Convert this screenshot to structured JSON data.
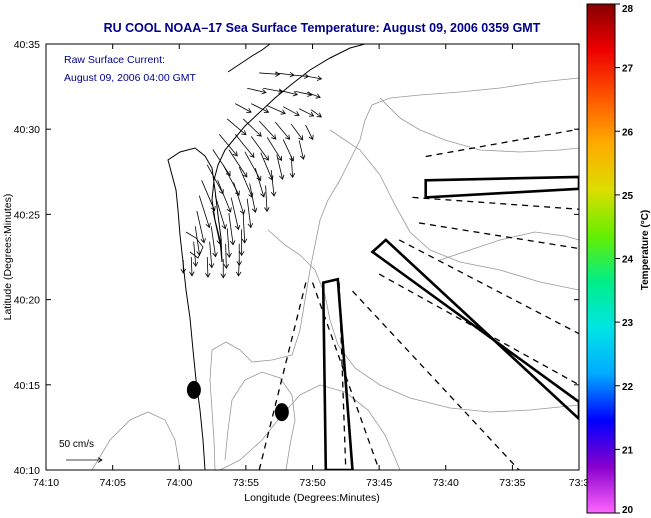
{
  "chart_data": {
    "type": "map",
    "title": "RU COOL  NOAA–17  Sea Surface Temperature:  August 09, 2006 0359 GMT",
    "annotation": [
      "Raw Surface Current:",
      "August 09, 2006 04:00 GMT"
    ],
    "xlabel": "Longitude (Degrees:Minutes)",
    "ylabel": "Latitude (Degrees:Minutes)",
    "xlim": [
      -74.1667,
      -73.5
    ],
    "ylim": [
      40.1667,
      40.5833
    ],
    "x_ticks": [
      {
        "v": -74.1667,
        "label": "74:10"
      },
      {
        "v": -74.0833,
        "label": "74:05"
      },
      {
        "v": -74.0,
        "label": "74:00"
      },
      {
        "v": -73.9167,
        "label": "73:55"
      },
      {
        "v": -73.8333,
        "label": "73:50"
      },
      {
        "v": -73.75,
        "label": "73:45"
      },
      {
        "v": -73.6667,
        "label": "73:40"
      },
      {
        "v": -73.5833,
        "label": "73:35"
      },
      {
        "v": -73.5,
        "label": "73:3"
      }
    ],
    "y_ticks": [
      {
        "v": 40.1667,
        "label": "40:10"
      },
      {
        "v": 40.25,
        "label": "40:15"
      },
      {
        "v": 40.3333,
        "label": "40:20"
      },
      {
        "v": 40.4167,
        "label": "40:25"
      },
      {
        "v": 40.5,
        "label": "40:30"
      },
      {
        "v": 40.5833,
        "label": "40:35"
      }
    ],
    "colorbar": {
      "label": "Temperature (°C)",
      "min": 20,
      "max": 28,
      "ticks": [
        20,
        21,
        22,
        23,
        24,
        25,
        26,
        27,
        28
      ],
      "stops": [
        "#ff66ff",
        "#8800cc",
        "#0000ff",
        "#00aaff",
        "#00e5e5",
        "#00ee88",
        "#66ee00",
        "#dddd00",
        "#ffaa00",
        "#ff5500",
        "#ee0000",
        "#880000"
      ]
    },
    "scale_label": "50 cm/s",
    "scale_speed": 50,
    "markers": [
      {
        "lon": -73.9817,
        "lat": 40.245
      },
      {
        "lon": -73.8717,
        "lat": 40.2233
      }
    ],
    "solid_polygons": [
      [
        [
          -73.6917,
          40.45
        ],
        [
          -73.5,
          40.4533
        ],
        [
          -73.5,
          40.4417
        ],
        [
          -73.6917,
          40.4333
        ]
      ],
      [
        [
          -73.8167,
          40.1667
        ],
        [
          -73.82,
          40.35
        ],
        [
          -73.8017,
          40.3533
        ],
        [
          -73.7833,
          40.1667
        ]
      ],
      [
        [
          -73.7583,
          40.38
        ],
        [
          -73.5,
          40.2333
        ],
        [
          -73.5,
          40.2167
        ],
        [
          -73.7417,
          40.3917
        ]
      ]
    ],
    "dashed_lines": [
      [
        [
          -73.6917,
          40.4733
        ],
        [
          -73.5,
          40.5
        ]
      ],
      [
        [
          -73.7,
          40.4083
        ],
        [
          -73.5,
          40.3833
        ]
      ],
      [
        [
          -73.7083,
          40.4333
        ],
        [
          -73.5,
          40.4217
        ]
      ],
      [
        [
          -73.725,
          40.3917
        ],
        [
          -73.5,
          40.3
        ]
      ],
      [
        [
          -73.75,
          40.3583
        ],
        [
          -73.5,
          40.25
        ]
      ],
      [
        [
          -73.7833,
          40.3417
        ],
        [
          -73.575,
          40.1667
        ]
      ],
      [
        [
          -73.8,
          40.35
        ],
        [
          -73.7917,
          40.1667
        ]
      ],
      [
        [
          -73.8417,
          40.35
        ],
        [
          -73.9,
          40.1667
        ]
      ],
      [
        [
          -73.8333,
          40.35
        ],
        [
          -73.75,
          40.1667
        ]
      ]
    ],
    "currents": [
      {
        "lon": -73.9,
        "lat": 40.555,
        "u": 28,
        "v": -2
      },
      {
        "lon": -73.88,
        "lat": 40.555,
        "u": 26,
        "v": -3
      },
      {
        "lon": -73.86,
        "lat": 40.553,
        "u": 24,
        "v": -2
      },
      {
        "lon": -73.842,
        "lat": 40.552,
        "u": 22,
        "v": -4
      },
      {
        "lon": -73.915,
        "lat": 40.54,
        "u": 26,
        "v": -6
      },
      {
        "lon": -73.895,
        "lat": 40.54,
        "u": 27,
        "v": -5
      },
      {
        "lon": -73.875,
        "lat": 40.538,
        "u": 25,
        "v": -6
      },
      {
        "lon": -73.855,
        "lat": 40.537,
        "u": 23,
        "v": -5
      },
      {
        "lon": -73.84,
        "lat": 40.536,
        "u": 18,
        "v": -7
      },
      {
        "lon": -73.93,
        "lat": 40.525,
        "u": 22,
        "v": -12
      },
      {
        "lon": -73.91,
        "lat": 40.525,
        "u": 24,
        "v": -12
      },
      {
        "lon": -73.89,
        "lat": 40.523,
        "u": 25,
        "v": -11
      },
      {
        "lon": -73.87,
        "lat": 40.522,
        "u": 22,
        "v": -12
      },
      {
        "lon": -73.85,
        "lat": 40.52,
        "u": 20,
        "v": -10
      },
      {
        "lon": -73.835,
        "lat": 40.519,
        "u": 14,
        "v": -10
      },
      {
        "lon": -73.94,
        "lat": 40.51,
        "u": 26,
        "v": -22
      },
      {
        "lon": -73.92,
        "lat": 40.51,
        "u": 25,
        "v": -24
      },
      {
        "lon": -73.9,
        "lat": 40.508,
        "u": 23,
        "v": -25
      },
      {
        "lon": -73.88,
        "lat": 40.507,
        "u": 20,
        "v": -24
      },
      {
        "lon": -73.86,
        "lat": 40.505,
        "u": 16,
        "v": -22
      },
      {
        "lon": -73.842,
        "lat": 40.504,
        "u": 10,
        "v": -20
      },
      {
        "lon": -73.95,
        "lat": 40.495,
        "u": 25,
        "v": -30
      },
      {
        "lon": -73.93,
        "lat": 40.495,
        "u": 26,
        "v": -32
      },
      {
        "lon": -73.91,
        "lat": 40.493,
        "u": 24,
        "v": -33
      },
      {
        "lon": -73.89,
        "lat": 40.492,
        "u": 20,
        "v": -32
      },
      {
        "lon": -73.87,
        "lat": 40.49,
        "u": 14,
        "v": -30
      },
      {
        "lon": -73.85,
        "lat": 40.489,
        "u": 6,
        "v": -26
      },
      {
        "lon": -73.958,
        "lat": 40.48,
        "u": 24,
        "v": -36
      },
      {
        "lon": -73.938,
        "lat": 40.48,
        "u": 25,
        "v": -38
      },
      {
        "lon": -73.918,
        "lat": 40.478,
        "u": 22,
        "v": -40
      },
      {
        "lon": -73.898,
        "lat": 40.477,
        "u": 16,
        "v": -38
      },
      {
        "lon": -73.878,
        "lat": 40.475,
        "u": 8,
        "v": -34
      },
      {
        "lon": -73.86,
        "lat": 40.474,
        "u": 2,
        "v": -30
      },
      {
        "lon": -73.965,
        "lat": 40.465,
        "u": 22,
        "v": -40
      },
      {
        "lon": -73.945,
        "lat": 40.465,
        "u": 22,
        "v": -42
      },
      {
        "lon": -73.925,
        "lat": 40.463,
        "u": 18,
        "v": -42
      },
      {
        "lon": -73.905,
        "lat": 40.462,
        "u": 12,
        "v": -40
      },
      {
        "lon": -73.885,
        "lat": 40.46,
        "u": 4,
        "v": -36
      },
      {
        "lon": -73.972,
        "lat": 40.45,
        "u": 18,
        "v": -42
      },
      {
        "lon": -73.952,
        "lat": 40.45,
        "u": 18,
        "v": -44
      },
      {
        "lon": -73.932,
        "lat": 40.448,
        "u": 14,
        "v": -44
      },
      {
        "lon": -73.912,
        "lat": 40.447,
        "u": 8,
        "v": -40
      },
      {
        "lon": -73.892,
        "lat": 40.445,
        "u": 2,
        "v": -36
      },
      {
        "lon": -73.975,
        "lat": 40.435,
        "u": 14,
        "v": -44
      },
      {
        "lon": -73.955,
        "lat": 40.435,
        "u": 14,
        "v": -46
      },
      {
        "lon": -73.935,
        "lat": 40.433,
        "u": 10,
        "v": -44
      },
      {
        "lon": -73.915,
        "lat": 40.432,
        "u": 5,
        "v": -40
      },
      {
        "lon": -73.978,
        "lat": 40.42,
        "u": 10,
        "v": -44
      },
      {
        "lon": -73.958,
        "lat": 40.42,
        "u": 10,
        "v": -46
      },
      {
        "lon": -73.938,
        "lat": 40.418,
        "u": 6,
        "v": -44
      },
      {
        "lon": -73.92,
        "lat": 40.417,
        "u": 2,
        "v": -40
      },
      {
        "lon": -73.98,
        "lat": 40.405,
        "u": 6,
        "v": -40
      },
      {
        "lon": -73.96,
        "lat": 40.405,
        "u": 6,
        "v": -42
      },
      {
        "lon": -73.94,
        "lat": 40.403,
        "u": 3,
        "v": -40
      },
      {
        "lon": -73.922,
        "lat": 40.402,
        "u": 0,
        "v": -36
      },
      {
        "lon": -73.982,
        "lat": 40.39,
        "u": 3,
        "v": -34
      },
      {
        "lon": -73.962,
        "lat": 40.39,
        "u": 3,
        "v": -36
      },
      {
        "lon": -73.942,
        "lat": 40.388,
        "u": 1,
        "v": -34
      },
      {
        "lon": -73.925,
        "lat": 40.388,
        "u": 0,
        "v": -30
      },
      {
        "lon": -73.985,
        "lat": 40.375,
        "u": 1,
        "v": -26
      },
      {
        "lon": -73.965,
        "lat": 40.375,
        "u": 1,
        "v": -28
      },
      {
        "lon": -73.945,
        "lat": 40.373,
        "u": 0,
        "v": -26
      },
      {
        "lon": -73.995,
        "lat": 40.372,
        "u": 0,
        "v": -18
      },
      {
        "lon": -73.925,
        "lat": 40.372,
        "u": -1,
        "v": -22
      }
    ]
  }
}
